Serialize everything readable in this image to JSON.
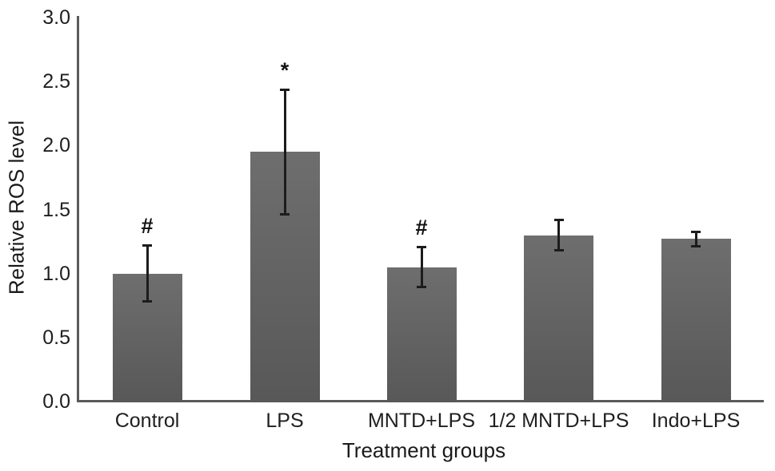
{
  "chart_data": {
    "type": "bar",
    "title": "",
    "xlabel": "Treatment groups",
    "ylabel": "Relative ROS level",
    "categories": [
      "Control",
      "LPS",
      "MNTD+LPS",
      "1/2 MNTD+LPS",
      "Indo+LPS"
    ],
    "values": [
      1.0,
      1.95,
      1.05,
      1.3,
      1.27
    ],
    "errors": [
      0.22,
      0.49,
      0.16,
      0.12,
      0.06
    ],
    "annotations": [
      "#",
      "*",
      "#",
      "",
      ""
    ],
    "ylim": [
      0.0,
      3.0
    ],
    "yticks": [
      "0.0",
      "0.5",
      "1.0",
      "1.5",
      "2.0",
      "2.5",
      "3.0"
    ],
    "grid": false,
    "legend": "none",
    "bar_color": "#646464",
    "error_color": "#1c1c1c"
  }
}
